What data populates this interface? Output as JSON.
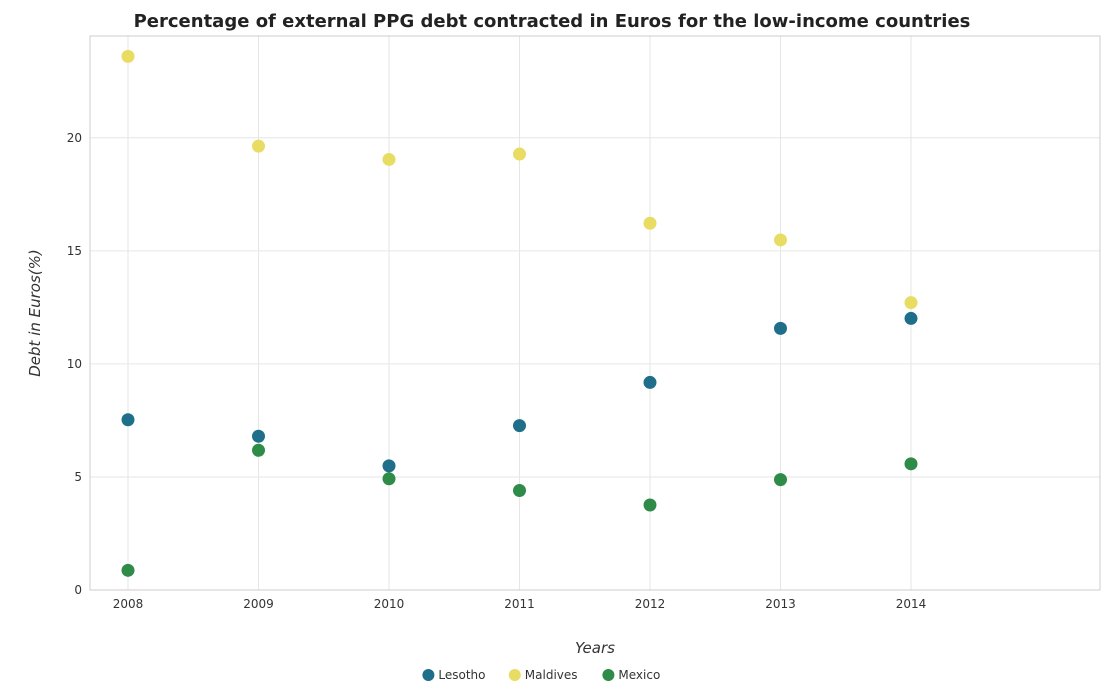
{
  "chart_data": {
    "type": "scatter",
    "title": "Percentage of external PPG debt contracted in Euros for the low-income countries",
    "xlabel": "Years",
    "ylabel": "Debt in Euros(%)",
    "categories": [
      "2008",
      "2009",
      "2010",
      "2011",
      "2012",
      "2013",
      "2014"
    ],
    "y_ticks": [
      "0",
      "5",
      "10",
      "15",
      "20"
    ],
    "ylim": [
      0,
      24.5
    ],
    "grid": true,
    "legend_position": "bottom-center",
    "series": [
      {
        "name": "Lesotho",
        "color": "#1f6f8b",
        "values": [
          7.53,
          6.8,
          5.49,
          7.27,
          9.18,
          11.57,
          12.01
        ]
      },
      {
        "name": "Maldives",
        "color": "#e8dc63",
        "values": [
          23.6,
          19.63,
          19.04,
          19.28,
          16.22,
          15.48,
          12.71
        ]
      },
      {
        "name": "Mexico",
        "color": "#2e8b48",
        "values": [
          0.87,
          6.18,
          4.92,
          4.4,
          3.76,
          4.88,
          5.58
        ]
      }
    ]
  }
}
